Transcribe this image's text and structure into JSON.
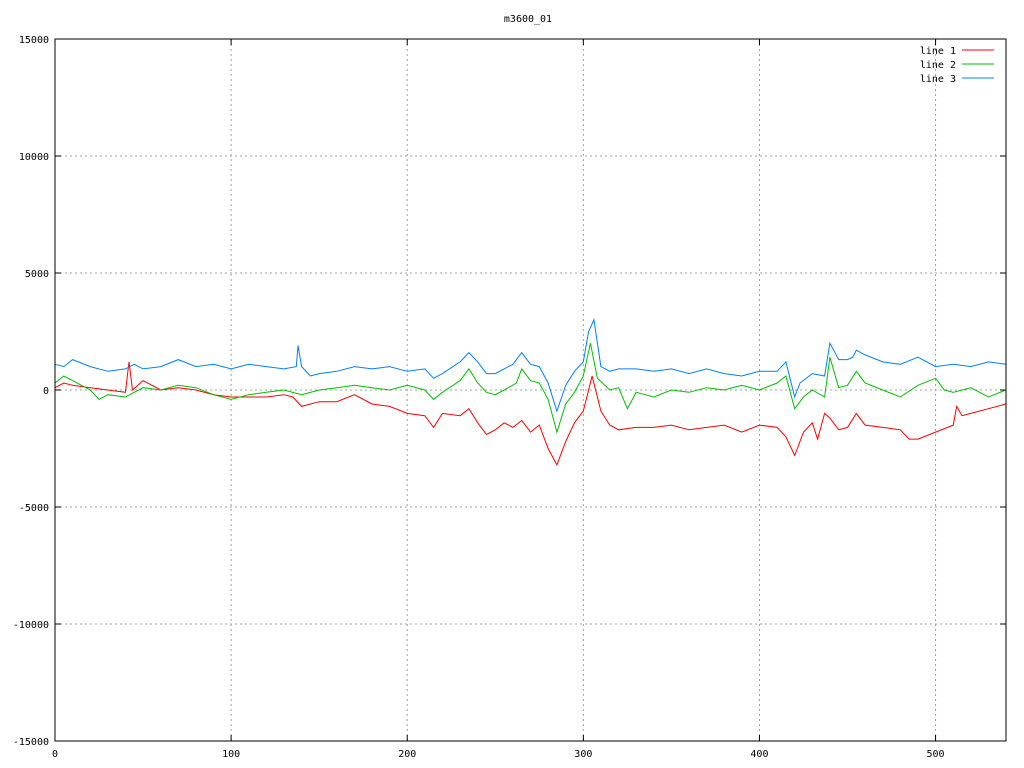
{
  "chart_data": {
    "type": "line",
    "title": "m3600_01",
    "xlabel": "",
    "ylabel": "",
    "xlim": [
      0,
      540
    ],
    "ylim": [
      -15000,
      15000
    ],
    "xticks": [
      0,
      100,
      200,
      300,
      400,
      500
    ],
    "yticks": [
      -15000,
      -10000,
      -5000,
      0,
      5000,
      10000,
      15000
    ],
    "grid": true,
    "legend_placement": "top-right",
    "series": [
      {
        "name": "line 1",
        "color": "#ff0000",
        "x": [
          0,
          5,
          10,
          20,
          30,
          40,
          42,
          44,
          50,
          60,
          70,
          80,
          90,
          100,
          110,
          120,
          130,
          135,
          140,
          150,
          160,
          170,
          180,
          190,
          200,
          210,
          215,
          220,
          230,
          235,
          240,
          245,
          250,
          255,
          260,
          265,
          270,
          275,
          280,
          285,
          290,
          295,
          300,
          305,
          310,
          315,
          320,
          330,
          340,
          350,
          360,
          370,
          380,
          390,
          400,
          410,
          415,
          420,
          425,
          430,
          433,
          437,
          440,
          445,
          450,
          455,
          460,
          470,
          480,
          485,
          490,
          500,
          510,
          512,
          515,
          520,
          530,
          540
        ],
        "y": [
          100,
          300,
          200,
          100,
          0,
          -100,
          1200,
          0,
          400,
          0,
          100,
          0,
          -200,
          -300,
          -300,
          -300,
          -200,
          -300,
          -700,
          -500,
          -500,
          -200,
          -600,
          -700,
          -1000,
          -1100,
          -1600,
          -1000,
          -1100,
          -800,
          -1400,
          -1900,
          -1700,
          -1400,
          -1600,
          -1300,
          -1800,
          -1500,
          -2500,
          -3200,
          -2200,
          -1400,
          -900,
          600,
          -900,
          -1500,
          -1700,
          -1600,
          -1600,
          -1500,
          -1700,
          -1600,
          -1500,
          -1800,
          -1500,
          -1600,
          -2000,
          -2800,
          -1800,
          -1400,
          -2100,
          -1000,
          -1200,
          -1700,
          -1600,
          -1000,
          -1500,
          -1600,
          -1700,
          -2100,
          -2100,
          -1800,
          -1500,
          -700,
          -1100,
          -1000,
          -800,
          -600
        ]
      },
      {
        "name": "line 2",
        "color": "#00c000",
        "x": [
          0,
          5,
          10,
          20,
          25,
          30,
          40,
          50,
          60,
          70,
          80,
          90,
          100,
          110,
          120,
          130,
          140,
          150,
          160,
          170,
          180,
          190,
          200,
          210,
          215,
          220,
          230,
          235,
          240,
          245,
          250,
          255,
          262,
          265,
          270,
          275,
          280,
          285,
          290,
          295,
          300,
          304,
          308,
          315,
          320,
          325,
          330,
          340,
          350,
          360,
          370,
          380,
          390,
          400,
          410,
          415,
          420,
          425,
          430,
          437,
          440,
          445,
          450,
          455,
          460,
          470,
          480,
          490,
          500,
          505,
          510,
          520,
          530,
          540
        ],
        "y": [
          300,
          600,
          400,
          0,
          -400,
          -200,
          -300,
          100,
          0,
          200,
          100,
          -200,
          -400,
          -200,
          -100,
          0,
          -200,
          0,
          100,
          200,
          100,
          0,
          200,
          0,
          -400,
          -100,
          400,
          900,
          300,
          -100,
          -200,
          0,
          300,
          900,
          400,
          300,
          -400,
          -1800,
          -600,
          -100,
          600,
          2000,
          500,
          0,
          100,
          -800,
          -100,
          -300,
          0,
          -100,
          100,
          0,
          200,
          0,
          300,
          600,
          -800,
          -300,
          0,
          -300,
          1400,
          100,
          200,
          800,
          300,
          0,
          -300,
          200,
          500,
          0,
          -100,
          100,
          -300,
          0
        ]
      },
      {
        "name": "line 3",
        "color": "#0080ff",
        "x": [
          0,
          5,
          10,
          20,
          30,
          40,
          45,
          50,
          60,
          70,
          80,
          90,
          100,
          110,
          120,
          130,
          137,
          138,
          140,
          145,
          150,
          160,
          170,
          180,
          190,
          200,
          210,
          215,
          220,
          230,
          235,
          240,
          245,
          250,
          255,
          260,
          265,
          270,
          275,
          280,
          285,
          290,
          295,
          300,
          303,
          306,
          310,
          315,
          320,
          330,
          340,
          350,
          360,
          370,
          380,
          390,
          400,
          410,
          415,
          420,
          423,
          430,
          437,
          440,
          445,
          450,
          453,
          455,
          460,
          470,
          480,
          490,
          500,
          510,
          520,
          530,
          540
        ],
        "y": [
          1100,
          1000,
          1300,
          1000,
          800,
          900,
          1100,
          900,
          1000,
          1300,
          1000,
          1100,
          900,
          1100,
          1000,
          900,
          1000,
          1900,
          1000,
          600,
          700,
          800,
          1000,
          900,
          1000,
          800,
          900,
          500,
          700,
          1200,
          1600,
          1200,
          700,
          700,
          900,
          1100,
          1600,
          1100,
          1000,
          300,
          -900,
          200,
          800,
          1200,
          2500,
          3000,
          1000,
          800,
          900,
          900,
          800,
          900,
          700,
          900,
          700,
          600,
          800,
          800,
          1200,
          -300,
          300,
          700,
          600,
          2000,
          1300,
          1300,
          1400,
          1700,
          1500,
          1200,
          1100,
          1400,
          1000,
          1100,
          1000,
          1200,
          1100
        ]
      }
    ]
  }
}
